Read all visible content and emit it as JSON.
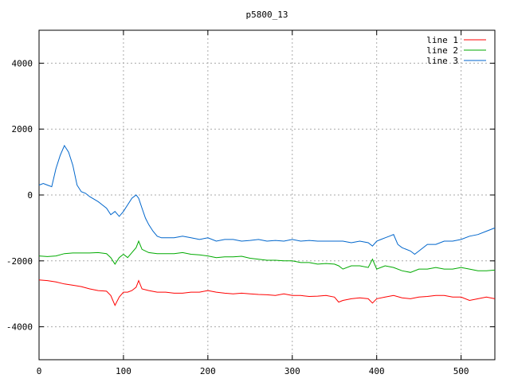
{
  "chart_data": {
    "type": "line",
    "title": "p5800_13",
    "xlabel": "",
    "ylabel": "",
    "xlim": [
      0,
      540
    ],
    "ylim": [
      -5000,
      5000
    ],
    "xticks": [
      0,
      100,
      200,
      300,
      400,
      500
    ],
    "yticks": [
      -4000,
      -2000,
      0,
      2000,
      4000
    ],
    "grid": true,
    "legend_position": "top-right",
    "series": [
      {
        "name": "line 1",
        "color": "#ff0000",
        "x": [
          0,
          10,
          20,
          30,
          40,
          50,
          60,
          70,
          80,
          85,
          90,
          95,
          100,
          105,
          110,
          115,
          118,
          122,
          130,
          140,
          150,
          160,
          170,
          180,
          190,
          200,
          210,
          220,
          230,
          240,
          250,
          260,
          270,
          280,
          290,
          300,
          310,
          320,
          330,
          340,
          350,
          355,
          360,
          370,
          380,
          390,
          395,
          400,
          410,
          420,
          430,
          440,
          450,
          460,
          470,
          480,
          490,
          500,
          510,
          520,
          530,
          540
        ],
        "y": [
          -2580,
          -2600,
          -2640,
          -2700,
          -2740,
          -2780,
          -2850,
          -2900,
          -2920,
          -3050,
          -3350,
          -3100,
          -2950,
          -2950,
          -2900,
          -2800,
          -2600,
          -2850,
          -2900,
          -2950,
          -2950,
          -2980,
          -2980,
          -2950,
          -2950,
          -2900,
          -2950,
          -2980,
          -3000,
          -2980,
          -3000,
          -3020,
          -3030,
          -3050,
          -3000,
          -3050,
          -3050,
          -3080,
          -3070,
          -3050,
          -3100,
          -3250,
          -3200,
          -3150,
          -3120,
          -3150,
          -3280,
          -3150,
          -3100,
          -3050,
          -3120,
          -3150,
          -3100,
          -3080,
          -3050,
          -3050,
          -3100,
          -3100,
          -3200,
          -3150,
          -3100,
          -3150
        ]
      },
      {
        "name": "line 2",
        "color": "#00aa00",
        "x": [
          0,
          10,
          20,
          30,
          40,
          50,
          60,
          70,
          80,
          85,
          90,
          95,
          100,
          105,
          110,
          115,
          118,
          122,
          130,
          140,
          150,
          160,
          170,
          180,
          190,
          200,
          210,
          220,
          230,
          240,
          250,
          260,
          270,
          280,
          290,
          300,
          310,
          320,
          330,
          340,
          350,
          355,
          360,
          370,
          380,
          390,
          395,
          400,
          410,
          420,
          430,
          440,
          450,
          460,
          470,
          480,
          490,
          500,
          510,
          520,
          530,
          540
        ],
        "y": [
          -1850,
          -1870,
          -1850,
          -1780,
          -1760,
          -1760,
          -1760,
          -1750,
          -1780,
          -1900,
          -2100,
          -1900,
          -1800,
          -1900,
          -1750,
          -1600,
          -1400,
          -1650,
          -1750,
          -1780,
          -1780,
          -1780,
          -1750,
          -1800,
          -1820,
          -1850,
          -1900,
          -1880,
          -1880,
          -1860,
          -1920,
          -1950,
          -1980,
          -1980,
          -2000,
          -2000,
          -2050,
          -2050,
          -2100,
          -2080,
          -2100,
          -2150,
          -2250,
          -2150,
          -2150,
          -2200,
          -1950,
          -2250,
          -2150,
          -2200,
          -2300,
          -2350,
          -2250,
          -2250,
          -2200,
          -2250,
          -2250,
          -2200,
          -2250,
          -2300,
          -2300,
          -2280
        ]
      },
      {
        "name": "line 3",
        "color": "#0066cc",
        "x": [
          0,
          5,
          10,
          15,
          20,
          25,
          30,
          35,
          40,
          45,
          50,
          55,
          60,
          70,
          80,
          85,
          90,
          95,
          100,
          105,
          110,
          115,
          118,
          122,
          126,
          130,
          135,
          140,
          145,
          150,
          160,
          170,
          180,
          190,
          200,
          210,
          220,
          230,
          240,
          250,
          260,
          270,
          280,
          290,
          300,
          310,
          320,
          330,
          340,
          350,
          360,
          370,
          380,
          390,
          395,
          400,
          405,
          410,
          415,
          420,
          425,
          430,
          440,
          445,
          450,
          460,
          470,
          480,
          490,
          500,
          510,
          520,
          530,
          540
        ],
        "y": [
          300,
          350,
          300,
          250,
          800,
          1200,
          1500,
          1300,
          900,
          300,
          100,
          50,
          -50,
          -200,
          -400,
          -600,
          -500,
          -650,
          -500,
          -300,
          -100,
          0,
          -100,
          -400,
          -700,
          -900,
          -1100,
          -1250,
          -1300,
          -1300,
          -1300,
          -1250,
          -1300,
          -1350,
          -1300,
          -1400,
          -1350,
          -1350,
          -1400,
          -1380,
          -1350,
          -1400,
          -1380,
          -1400,
          -1350,
          -1400,
          -1380,
          -1400,
          -1400,
          -1400,
          -1400,
          -1450,
          -1400,
          -1450,
          -1550,
          -1400,
          -1350,
          -1300,
          -1250,
          -1200,
          -1500,
          -1600,
          -1700,
          -1800,
          -1700,
          -1500,
          -1500,
          -1400,
          -1400,
          -1350,
          -1250,
          -1200,
          -1100,
          -1000
        ]
      }
    ]
  }
}
